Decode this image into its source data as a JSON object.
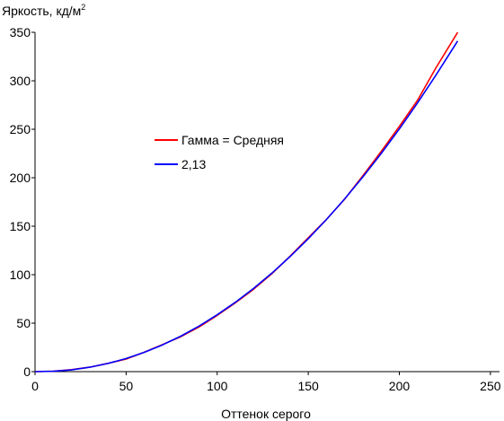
{
  "chart_data": {
    "type": "line",
    "title": "",
    "ylabel": "Яркость, кд/м",
    "ylabel_sup": "2",
    "xlabel": "Оттенок серого",
    "xlim": [
      0,
      255
    ],
    "ylim": [
      0,
      350
    ],
    "xticks": [
      0,
      50,
      100,
      150,
      200,
      250
    ],
    "yticks": [
      0,
      50,
      100,
      150,
      200,
      250,
      300,
      350
    ],
    "grid": false,
    "legend_position": "center-left",
    "series": [
      {
        "name": "Гамма = Средняя",
        "color": "#ff0000",
        "x": [
          0,
          10,
          20,
          30,
          40,
          50,
          60,
          70,
          80,
          90,
          100,
          110,
          120,
          130,
          140,
          150,
          160,
          170,
          180,
          190,
          200,
          210,
          220,
          232
        ],
        "y": [
          0,
          0.5,
          2,
          4.5,
          8.5,
          13,
          20,
          28,
          36,
          46,
          58,
          71,
          85,
          101,
          119,
          138,
          157,
          178,
          202,
          227,
          253,
          280,
          313,
          350
        ]
      },
      {
        "name": "2,13",
        "color": "#0000ff",
        "x": [
          0,
          10,
          20,
          30,
          40,
          50,
          60,
          70,
          80,
          90,
          100,
          110,
          120,
          130,
          140,
          150,
          160,
          170,
          180,
          190,
          200,
          210,
          220,
          232
        ],
        "y": [
          0,
          0.4,
          1.8,
          4.5,
          8.4,
          13.5,
          19.9,
          27.6,
          36.6,
          46.9,
          58.6,
          71.6,
          85.9,
          101.6,
          118.6,
          137.1,
          156.9,
          178.2,
          200.8,
          224.9,
          250.3,
          277.2,
          305.5,
          341
        ]
      }
    ]
  }
}
